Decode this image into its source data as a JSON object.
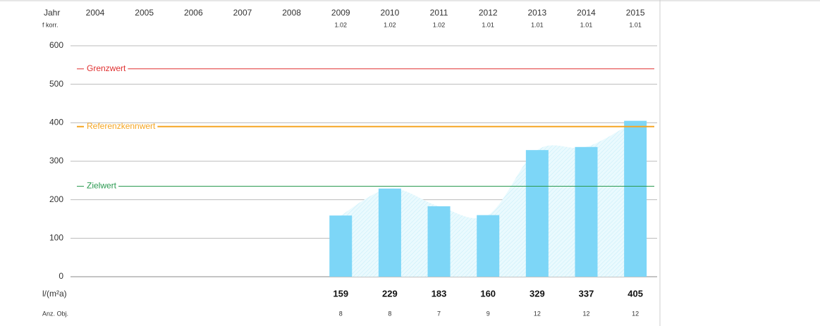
{
  "chart_data": {
    "type": "bar",
    "row_labels": {
      "year": "Jahr",
      "factor": "f korr.",
      "value": "l/(m²a)",
      "count": "Anz. Obj."
    },
    "categories": [
      "2004",
      "2005",
      "2006",
      "2007",
      "2008",
      "2009",
      "2010",
      "2011",
      "2012",
      "2013",
      "2014",
      "2015"
    ],
    "factors": [
      null,
      null,
      null,
      null,
      null,
      1.02,
      1.02,
      1.02,
      1.01,
      1.01,
      1.01,
      1.01
    ],
    "values": [
      null,
      null,
      null,
      null,
      null,
      159,
      229,
      183,
      160,
      329,
      337,
      405
    ],
    "counts": [
      null,
      null,
      null,
      null,
      null,
      8,
      8,
      7,
      9,
      12,
      12,
      12
    ],
    "color": "#7dd6f7",
    "area_color": "#dff5fc",
    "ylim": [
      0,
      600
    ],
    "yticks": [
      0,
      100,
      200,
      300,
      400,
      500,
      600
    ],
    "grid": true,
    "reference_lines": [
      {
        "name": "Grenzwert",
        "value": 540,
        "color": "#e03030"
      },
      {
        "name": "Referenzkennwert",
        "value": 390,
        "color": "#f5a623"
      },
      {
        "name": "Zielwert",
        "value": 235,
        "color": "#2a9a50"
      }
    ]
  }
}
